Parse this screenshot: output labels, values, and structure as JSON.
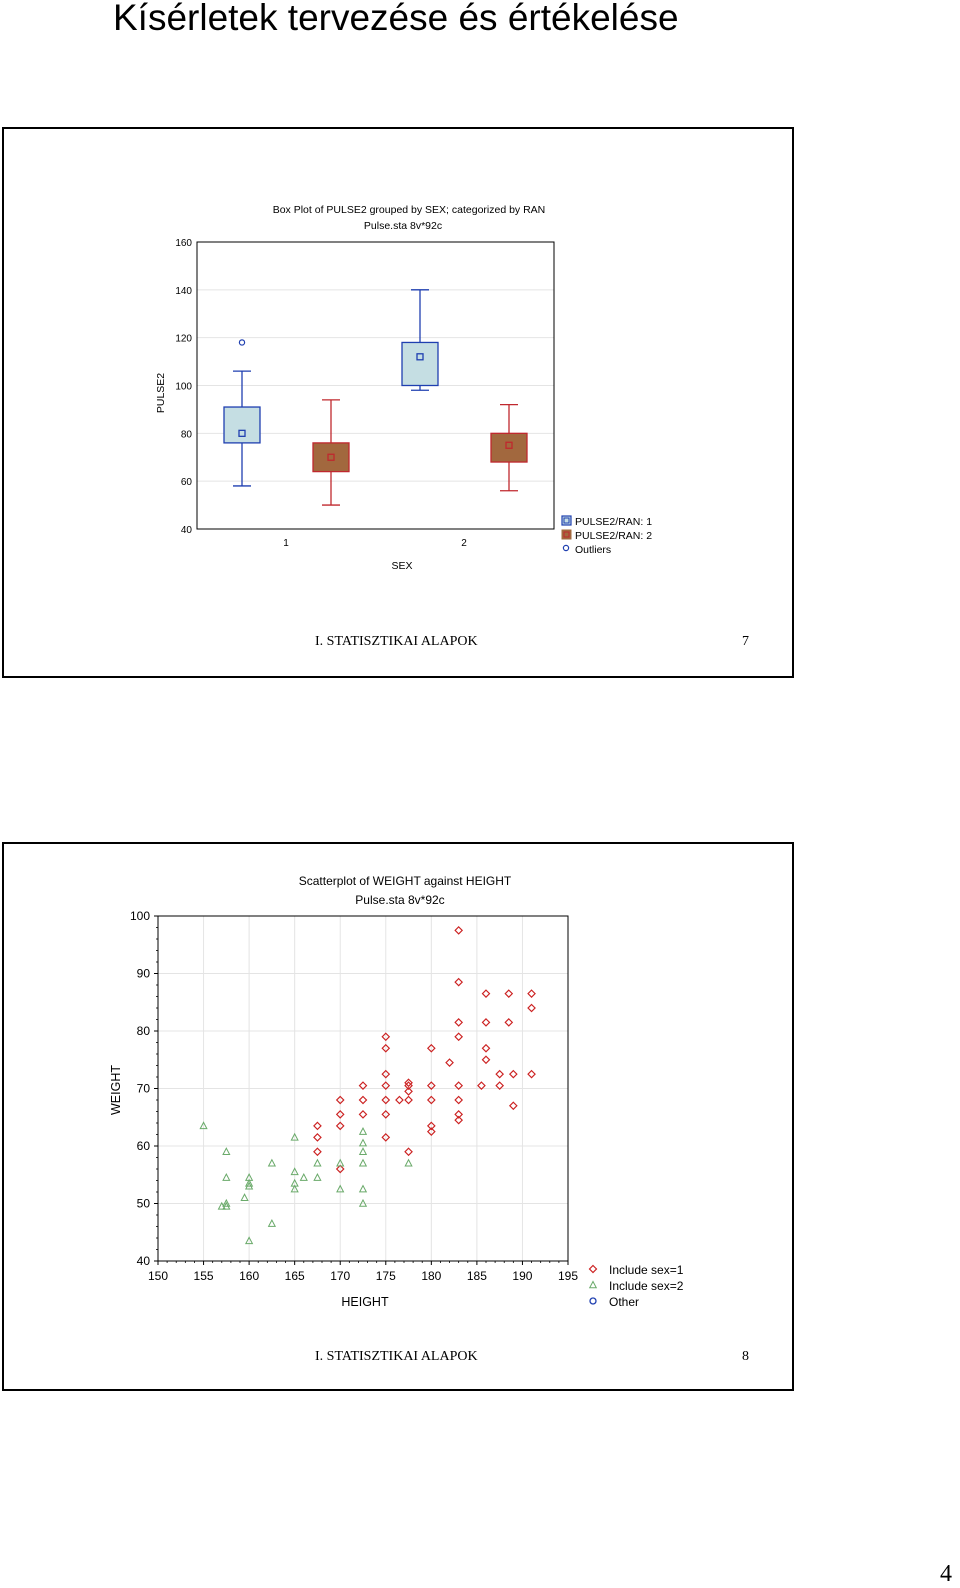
{
  "document": {
    "title": "Kísérletek tervezése és értékelése",
    "page_number": "4"
  },
  "slides": [
    {
      "footer_left": "I. STATISZTIKAI ALAPOK",
      "footer_right": "7"
    },
    {
      "footer_left": "I. STATISZTIKAI ALAPOK",
      "footer_right": "8"
    }
  ],
  "chart_data": [
    {
      "type": "box",
      "title": "Box Plot of PULSE2 grouped by  SEX; categorized by RAN",
      "subtitle": "Pulse.sta 8v*92c",
      "xlabel": "SEX",
      "ylabel": "PULSE2",
      "ylim": [
        40,
        160
      ],
      "yticks": [
        40,
        60,
        80,
        100,
        120,
        140,
        160
      ],
      "categories": [
        "1",
        "2"
      ],
      "colors": {
        "RAN1_fill": "#c5dee3",
        "RAN1_stroke": "#1f3fb0",
        "RAN2_fill": "#a2683e",
        "RAN2_stroke": "#c0282e"
      },
      "series": [
        {
          "name": "PULSE2/RAN: 1",
          "boxes": [
            {
              "category": "1",
              "min": 58,
              "q1": 76,
              "median": 80,
              "q3": 91,
              "max": 106
            },
            {
              "category": "2",
              "min": 98,
              "q1": 100,
              "median": 112,
              "q3": 118,
              "max": 140
            }
          ]
        },
        {
          "name": "PULSE2/RAN: 2",
          "boxes": [
            {
              "category": "1",
              "min": 50,
              "q1": 64,
              "median": 70,
              "q3": 76,
              "max": 94
            },
            {
              "category": "2",
              "min": 56,
              "q1": 68,
              "median": 75,
              "q3": 80,
              "max": 92
            }
          ]
        }
      ],
      "outliers": [
        {
          "category": "1",
          "group": "PULSE2/RAN: 1",
          "value": 118
        }
      ],
      "legend": [
        "PULSE2/RAN: 1",
        "PULSE2/RAN: 2",
        "Outliers"
      ],
      "legend_position": "right"
    },
    {
      "type": "scatter",
      "title": "Scatterplot of WEIGHT against HEIGHT",
      "subtitle": "Pulse.sta 8v*92c",
      "xlabel": "HEIGHT",
      "ylabel": "WEIGHT",
      "xlim": [
        150,
        195
      ],
      "ylim": [
        40,
        100
      ],
      "xticks": [
        150,
        155,
        160,
        165,
        170,
        175,
        180,
        185,
        190,
        195
      ],
      "yticks": [
        40,
        50,
        60,
        70,
        80,
        90,
        100
      ],
      "legend": [
        "Include sex=1",
        "Include sex=2",
        "Other"
      ],
      "legend_position": "right",
      "colors": {
        "sex1": "#cc2222",
        "sex2": "#6aaa6a",
        "other": "#1f3fb0"
      },
      "series": [
        {
          "name": "Include sex=1",
          "marker": "diamond",
          "points": [
            [
              183,
              97.5
            ],
            [
              183,
              88.5
            ],
            [
              186,
              86.5
            ],
            [
              188.5,
              86.5
            ],
            [
              191,
              86.5
            ],
            [
              191,
              84
            ],
            [
              183,
              81.5
            ],
            [
              186,
              81.5
            ],
            [
              188.5,
              81.5
            ],
            [
              175,
              79
            ],
            [
              183,
              79
            ],
            [
              175,
              77
            ],
            [
              180,
              77
            ],
            [
              186,
              77
            ],
            [
              186,
              75
            ],
            [
              182,
              74.5
            ],
            [
              175,
              72.5
            ],
            [
              187.5,
              72.5
            ],
            [
              189,
              72.5
            ],
            [
              191,
              72.5
            ],
            [
              177.5,
              71
            ],
            [
              177.5,
              70.5
            ],
            [
              172.5,
              70.5
            ],
            [
              175,
              70.5
            ],
            [
              180,
              70.5
            ],
            [
              183,
              70.5
            ],
            [
              185.5,
              70.5
            ],
            [
              187.5,
              70.5
            ],
            [
              177.5,
              69.5
            ],
            [
              170,
              68
            ],
            [
              172.5,
              68
            ],
            [
              175,
              68
            ],
            [
              176.5,
              68
            ],
            [
              177.5,
              68
            ],
            [
              180,
              68
            ],
            [
              183,
              68
            ],
            [
              189,
              67
            ],
            [
              170,
              65.5
            ],
            [
              172.5,
              65.5
            ],
            [
              175,
              65.5
            ],
            [
              183,
              65.5
            ],
            [
              183,
              64.5
            ],
            [
              167.5,
              63.5
            ],
            [
              170,
              63.5
            ],
            [
              180,
              63.5
            ],
            [
              180,
              62.5
            ],
            [
              167.5,
              61.5
            ],
            [
              175,
              61.5
            ],
            [
              167.5,
              59
            ],
            [
              177.5,
              59
            ],
            [
              170,
              56
            ]
          ]
        },
        {
          "name": "Include sex=2",
          "marker": "triangle",
          "points": [
            [
              155,
              63.5
            ],
            [
              165,
              61.5
            ],
            [
              172.5,
              62.5
            ],
            [
              172.5,
              60.5
            ],
            [
              157.5,
              59
            ],
            [
              172.5,
              59
            ],
            [
              162.5,
              57
            ],
            [
              167.5,
              57
            ],
            [
              170,
              57
            ],
            [
              172.5,
              57
            ],
            [
              177.5,
              57
            ],
            [
              165,
              55.5
            ],
            [
              157.5,
              54.5
            ],
            [
              160,
              54.5
            ],
            [
              166,
              54.5
            ],
            [
              167.5,
              54.5
            ],
            [
              160,
              53.5
            ],
            [
              165,
              53.5
            ],
            [
              160,
              53
            ],
            [
              165,
              52.5
            ],
            [
              170,
              52.5
            ],
            [
              172.5,
              52.5
            ],
            [
              159.5,
              51
            ],
            [
              157.5,
              50
            ],
            [
              172.5,
              50
            ],
            [
              157,
              49.5
            ],
            [
              157.5,
              49.5
            ],
            [
              162.5,
              46.5
            ],
            [
              160,
              43.5
            ]
          ]
        },
        {
          "name": "Other",
          "marker": "circle",
          "points": []
        }
      ]
    }
  ]
}
